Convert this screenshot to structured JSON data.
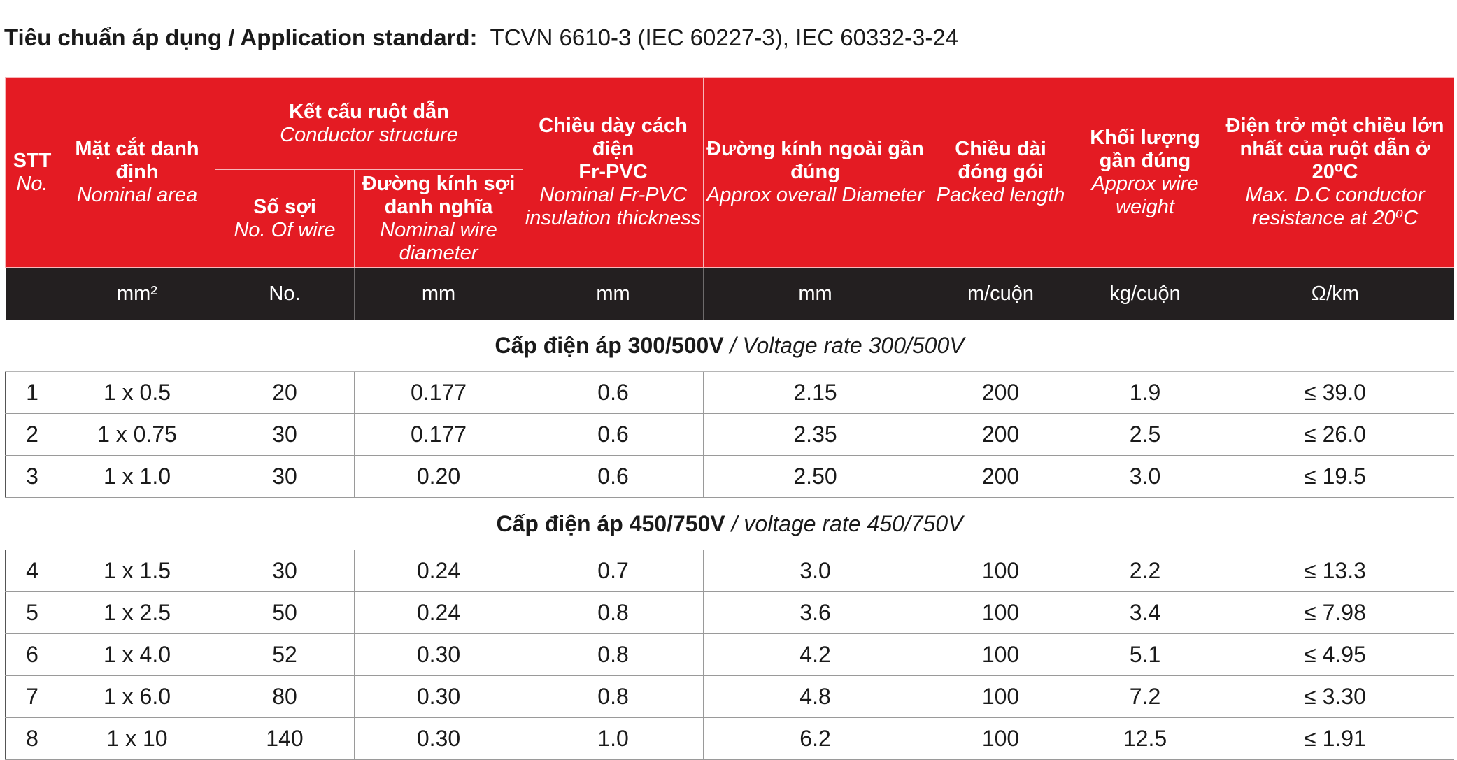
{
  "standard": {
    "label_vi": "Tiêu chuẩn áp dụng",
    "separator": " / ",
    "label_en": "Application standard:",
    "value": "TCVN 6610-3 (IEC 60227-3), IEC 60332-3-24"
  },
  "header": {
    "stt": {
      "vi": "STT",
      "en": "No."
    },
    "area": {
      "vi": "Mặt cắt danh định",
      "en": "Nominal area"
    },
    "structure": {
      "vi": "Kết cấu ruột dẫn",
      "en": "Conductor structure"
    },
    "wires": {
      "vi": "Số sợi",
      "en": "No. Of wire"
    },
    "wire_dia": {
      "vi": "Đường kính sợi danh nghĩa",
      "en": "Nominal wire diameter"
    },
    "insulation": {
      "vi1": "Chiều dày cách điện",
      "vi2": "Fr-PVC",
      "en": "Nominal Fr-PVC insulation thickness"
    },
    "overall_dia": {
      "vi": "Đường kính ngoài gần đúng",
      "en": "Approx overall Diameter"
    },
    "length": {
      "vi": "Chiều dài đóng gói",
      "en": "Packed length"
    },
    "weight": {
      "vi": "Khối lượng gần đúng",
      "en": "Approx wire weight"
    },
    "resistance": {
      "vi": "Điện trở một chiều lớn nhất của ruột dẫn ở 20⁰C",
      "en": "Max. D.C conductor resistance at 20⁰C"
    }
  },
  "units": [
    "",
    "mm²",
    "No.",
    "mm",
    "mm",
    "mm",
    "m/cuộn",
    "kg/cuộn",
    "Ω/km"
  ],
  "sections": [
    {
      "title_vi": "Cấp điện áp 300/500V",
      "title_en": " / Voltage rate 300/500V",
      "rows": [
        [
          "1",
          "1 x 0.5",
          "20",
          "0.177",
          "0.6",
          "2.15",
          "200",
          "1.9",
          "≤ 39.0"
        ],
        [
          "2",
          "1 x 0.75",
          "30",
          "0.177",
          "0.6",
          "2.35",
          "200",
          "2.5",
          "≤ 26.0"
        ],
        [
          "3",
          "1 x 1.0",
          "30",
          "0.20",
          "0.6",
          "2.50",
          "200",
          "3.0",
          "≤ 19.5"
        ]
      ]
    },
    {
      "title_vi": "Cấp điện áp 450/750V",
      "title_en": " / voltage rate 450/750V",
      "rows": [
        [
          "4",
          "1 x 1.5",
          "30",
          "0.24",
          "0.7",
          "3.0",
          "100",
          "2.2",
          "≤ 13.3"
        ],
        [
          "5",
          "1 x 2.5",
          "50",
          "0.24",
          "0.8",
          "3.6",
          "100",
          "3.4",
          "≤ 7.98"
        ],
        [
          "6",
          "1 x 4.0",
          "52",
          "0.30",
          "0.8",
          "4.2",
          "100",
          "5.1",
          "≤ 4.95"
        ],
        [
          "7",
          "1 x 6.0",
          "80",
          "0.30",
          "0.8",
          "4.8",
          "100",
          "7.2",
          "≤ 3.30"
        ],
        [
          "8",
          "1 x 10",
          "140",
          "0.30",
          "1.0",
          "6.2",
          "100",
          "12.5",
          "≤ 1.91"
        ]
      ]
    }
  ],
  "colors": {
    "header_red": "#e41b23",
    "units_black": "#231f20"
  }
}
